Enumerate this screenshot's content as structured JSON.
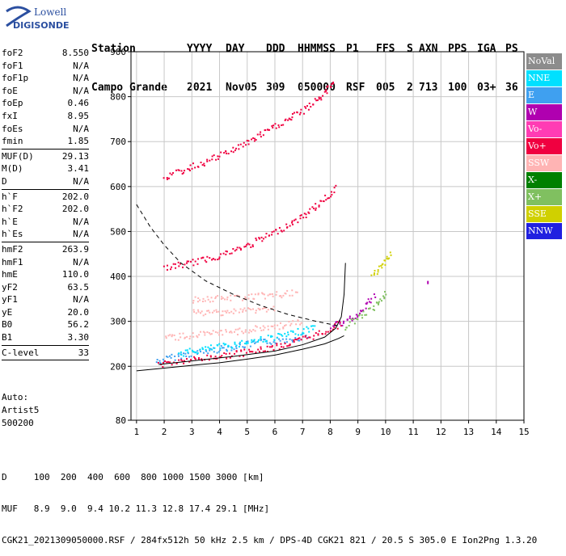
{
  "logo": {
    "line1": "Lowell",
    "line2": "DIGISONDE"
  },
  "header": {
    "row1": [
      "Station",
      "YYYY",
      "DAY",
      "DDD",
      "HHMMSS",
      "P1",
      "FFS",
      "S",
      "AXN",
      "PPS",
      "IGA",
      "PS"
    ],
    "row2": [
      "Campo Grande",
      "2021",
      "Nov05",
      "309",
      "050000",
      "RSF",
      "005",
      "2",
      "713",
      "100",
      "03+",
      "36"
    ]
  },
  "params": {
    "group1": [
      {
        "name": "foF2",
        "value": "8.550"
      },
      {
        "name": "foF1",
        "value": "N/A"
      },
      {
        "name": "foF1p",
        "value": "N/A"
      },
      {
        "name": "foE",
        "value": "N/A"
      },
      {
        "name": "foEp",
        "value": "0.46"
      },
      {
        "name": "fxI",
        "value": "8.95"
      },
      {
        "name": "foEs",
        "value": "N/A"
      },
      {
        "name": "fmin",
        "value": "1.85"
      }
    ],
    "group2": [
      {
        "name": "MUF(D)",
        "value": "29.13"
      },
      {
        "name": "M(D)",
        "value": "3.41"
      },
      {
        "name": "D",
        "value": "N/A"
      }
    ],
    "group3": [
      {
        "name": "h`F",
        "value": "202.0"
      },
      {
        "name": "h`F2",
        "value": "202.0"
      },
      {
        "name": "h`E",
        "value": "N/A"
      },
      {
        "name": "h`Es",
        "value": "N/A"
      }
    ],
    "group4": [
      {
        "name": "hmF2",
        "value": "263.9"
      },
      {
        "name": "hmF1",
        "value": "N/A"
      },
      {
        "name": "hmE",
        "value": "110.0"
      },
      {
        "name": "yF2",
        "value": "63.5"
      },
      {
        "name": "yF1",
        "value": "N/A"
      },
      {
        "name": "yE",
        "value": "20.0"
      },
      {
        "name": "B0",
        "value": "56.2"
      },
      {
        "name": "B1",
        "value": "3.30"
      }
    ],
    "group5": [
      {
        "name": "C-level",
        "value": "33"
      }
    ]
  },
  "auto": {
    "line1": "Auto:",
    "line2": "Artist5",
    "line3": "500200"
  },
  "legend": [
    {
      "label": "NoVal",
      "color": "#8c8c8c"
    },
    {
      "label": "NNE",
      "color": "#00e0ff"
    },
    {
      "label": "E",
      "color": "#3fa0f0"
    },
    {
      "label": "W",
      "color": "#b000b0"
    },
    {
      "label": "Vo-",
      "color": "#ff3cb4"
    },
    {
      "label": "Vo+",
      "color": "#f00040"
    },
    {
      "label": "SSW",
      "color": "#ffb4b4"
    },
    {
      "label": "X-",
      "color": "#008000"
    },
    {
      "label": "X+",
      "color": "#80c060"
    },
    {
      "label": "SSE",
      "color": "#d0d000"
    },
    {
      "label": "NNW",
      "color": "#2020e0"
    }
  ],
  "footer": {
    "line1": "D     100  200  400  600  800 1000 1500 3000 [km]",
    "line2": "MUF   8.9  9.0  9.4 10.2 11.3 12.8 17.4 29.1 [MHz]",
    "line3": "CGK21_2021309050000.RSF / 284fx512h 50 kHz 2.5 km / DPS-4D CGK21 821 / 20.5 S 305.0 E Ion2Png 1.3.20"
  },
  "chart_data": {
    "type": "scatter",
    "xlim": [
      0.8,
      15
    ],
    "ylim": [
      80,
      900
    ],
    "xticks": [
      1,
      2,
      3,
      4,
      5,
      6,
      7,
      8,
      9,
      10,
      11,
      12,
      13,
      14,
      15
    ],
    "yticks": [
      80,
      200,
      300,
      400,
      500,
      600,
      700,
      800,
      900
    ],
    "grid": true,
    "traces": [
      {
        "name": "E",
        "x": [
          1.7,
          2.5,
          3.5,
          4.5,
          5.5,
          6.5,
          7.2
        ],
        "y": [
          212,
          225,
          235,
          245,
          255,
          262,
          270
        ]
      },
      {
        "name": "NNE",
        "x": [
          2.5,
          3.5,
          4.5,
          5.5,
          6.5,
          7.5
        ],
        "y": [
          230,
          240,
          250,
          262,
          272,
          290
        ]
      },
      {
        "name": "Vo+",
        "x": [
          1.8,
          2.5,
          3.5,
          4.5,
          5.5,
          6.5,
          7.5,
          8.0,
          8.4
        ],
        "y": [
          206,
          212,
          220,
          228,
          238,
          252,
          272,
          285,
          300
        ]
      },
      {
        "name": "Vo+",
        "x": [
          2.0,
          3.0,
          4.0,
          5.0,
          6.0,
          7.0,
          7.8,
          8.2
        ],
        "y": [
          420,
          432,
          448,
          470,
          500,
          535,
          575,
          600
        ]
      },
      {
        "name": "Vo+",
        "x": [
          2.0,
          3.0,
          4.0,
          5.0,
          6.0,
          7.0,
          7.8,
          8.1
        ],
        "y": [
          622,
          645,
          670,
          700,
          735,
          770,
          810,
          840
        ]
      },
      {
        "name": "SSW",
        "x": [
          3.0,
          4.0,
          5.0,
          6.0,
          6.8
        ],
        "y": [
          350,
          352,
          356,
          360,
          365
        ]
      },
      {
        "name": "SSW",
        "x": [
          3.0,
          4.0,
          5.0,
          6.0
        ],
        "y": [
          320,
          322,
          326,
          330
        ]
      },
      {
        "name": "SSW",
        "x": [
          2.0,
          3.0,
          4.0,
          5.0,
          6.0,
          7.0
        ],
        "y": [
          265,
          270,
          275,
          282,
          290,
          300
        ]
      },
      {
        "name": "W",
        "x": [
          8.0,
          8.5,
          9.0,
          9.3,
          9.6
        ],
        "y": [
          290,
          300,
          320,
          340,
          360
        ]
      },
      {
        "name": "X+",
        "x": [
          8.5,
          9.0,
          9.5,
          9.8,
          10.0
        ],
        "y": [
          290,
          310,
          330,
          350,
          370
        ]
      },
      {
        "name": "SSE",
        "x": [
          9.5,
          9.8,
          10.0,
          10.2
        ],
        "y": [
          400,
          420,
          440,
          455
        ]
      },
      {
        "name": "W",
        "x": [
          11.5
        ],
        "y": [
          390
        ]
      }
    ],
    "profile_curves": [
      {
        "style": "solid",
        "x": [
          1.0,
          2.0,
          3.0,
          4.0,
          5.0,
          6.0,
          7.0,
          7.8,
          8.3,
          8.5
        ],
        "y": [
          190,
          196,
          202,
          208,
          216,
          225,
          238,
          250,
          262,
          268
        ]
      },
      {
        "style": "solid",
        "x": [
          1.8,
          3.0,
          4.5,
          6.0,
          7.0,
          7.8,
          8.2,
          8.4,
          8.5,
          8.55
        ],
        "y": [
          204,
          212,
          222,
          234,
          248,
          265,
          285,
          310,
          360,
          430
        ]
      },
      {
        "style": "dashed",
        "x": [
          1.0,
          1.5,
          2.0,
          2.6,
          3.5,
          4.5,
          5.5,
          6.5,
          7.5,
          8.3
        ],
        "y": [
          560,
          510,
          470,
          430,
          390,
          360,
          335,
          315,
          300,
          290
        ]
      }
    ]
  }
}
